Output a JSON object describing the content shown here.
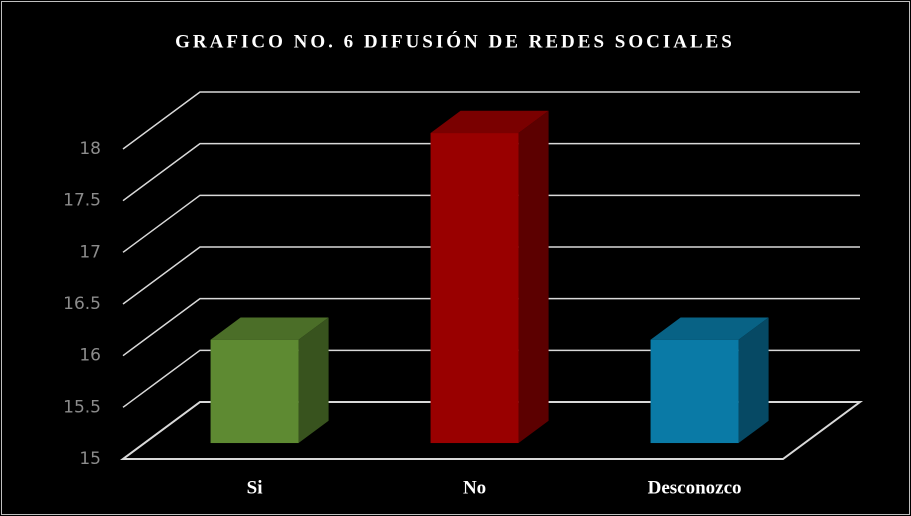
{
  "chart_data": {
    "type": "bar3d",
    "title": "GRAFICO NO. 6 DIFUSIÓN DE REDES SOCIALES",
    "categories": [
      "Si",
      "No",
      "Desconozco"
    ],
    "values": [
      16,
      18,
      16
    ],
    "colors": [
      "#5e8a32",
      "#990000",
      "#0a7aa6"
    ],
    "ylim": [
      15,
      18
    ],
    "yticks": [
      15,
      15.5,
      16,
      16.5,
      17,
      17.5,
      18
    ],
    "grid": true
  }
}
